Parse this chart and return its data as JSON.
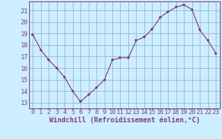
{
  "x": [
    0,
    1,
    2,
    3,
    4,
    5,
    6,
    7,
    8,
    9,
    10,
    11,
    12,
    13,
    14,
    15,
    16,
    17,
    18,
    19,
    20,
    21,
    22,
    23
  ],
  "y": [
    18.9,
    17.6,
    16.7,
    16.0,
    15.2,
    14.0,
    13.1,
    13.7,
    14.3,
    15.0,
    16.7,
    16.9,
    16.9,
    18.4,
    18.7,
    19.4,
    20.4,
    20.9,
    21.3,
    21.5,
    21.1,
    19.3,
    18.4,
    17.3
  ],
  "line_color": "#7f3f7f",
  "marker": "+",
  "bg_color": "#cceeff",
  "grid_color": "#99bbcc",
  "tick_label_color": "#7f3f7f",
  "xlabel": "Windchill (Refroidissement éolien,°C)",
  "xlabel_color": "#7f3f7f",
  "ylim": [
    12.5,
    21.8
  ],
  "xlim": [
    -0.5,
    23.5
  ],
  "yticks": [
    13,
    14,
    15,
    16,
    17,
    18,
    19,
    20,
    21
  ],
  "xticks": [
    0,
    1,
    2,
    3,
    4,
    5,
    6,
    7,
    8,
    9,
    10,
    11,
    12,
    13,
    14,
    15,
    16,
    17,
    18,
    19,
    20,
    21,
    22,
    23
  ],
  "font_size": 6.5,
  "xlabel_font_size": 7
}
